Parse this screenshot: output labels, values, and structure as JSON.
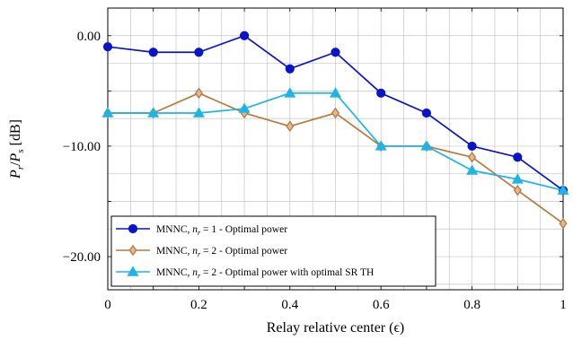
{
  "chart_data": {
    "type": "line",
    "title": "",
    "xlabel": "Relay relative center (ϵ)",
    "ylabel_parts": {
      "main": "P",
      "sub_r": "r",
      "slash": "/",
      "sub_s": "s",
      "unit": " [dB]"
    },
    "xlim": [
      0,
      1
    ],
    "ylim": [
      -23,
      2.5
    ],
    "grid": true,
    "legend_position": "bottom-left",
    "x_ticks": [
      0,
      0.2,
      0.4,
      0.6,
      0.8,
      1
    ],
    "x_tick_labels": [
      "0",
      "0.2",
      "0.4",
      "0.6",
      "0.8",
      "1"
    ],
    "y_ticks": [
      0,
      -10,
      -20
    ],
    "y_tick_labels": [
      "0.00",
      "−10.00",
      "−20.00"
    ],
    "x": [
      0,
      0.1,
      0.2,
      0.3,
      0.4,
      0.5,
      0.6,
      0.7,
      0.8,
      0.9,
      1.0
    ],
    "series": [
      {
        "name": "MNNC, n_r = 1 - Optimal power",
        "legend_prefix": "MNNC, ",
        "legend_var": "n",
        "legend_sub": "r",
        "legend_eq": " = 1",
        "legend_suffix": " - Optimal power",
        "color": "#0a14c8",
        "marker": "circle",
        "values": [
          -1,
          -1.5,
          -1.5,
          0,
          -3,
          -1.5,
          -5.2,
          -7,
          -10,
          -11,
          -14
        ]
      },
      {
        "name": "MNNC, n_r = 2 - Optimal power",
        "legend_prefix": "MNNC, ",
        "legend_var": "n",
        "legend_sub": "r",
        "legend_eq": " = 2",
        "legend_suffix": " - Optimal power",
        "color": "#b8793a",
        "marker": "diamond",
        "values": [
          -7,
          -7,
          -5.2,
          -7,
          -8.2,
          -7,
          -10,
          -10,
          -11,
          -14,
          -17
        ]
      },
      {
        "name": "MNNC, n_r = 2 - Optimal power with optimal SR TH",
        "legend_prefix": "MNNC, ",
        "legend_var": "n",
        "legend_sub": "r",
        "legend_eq": " = 2",
        "legend_suffix": " - Optimal power with optimal SR TH",
        "color": "#1eb4e6",
        "marker": "triangle",
        "values": [
          -7,
          -7,
          -7,
          -6.6,
          -5.2,
          -5.2,
          -10,
          -10,
          -12.2,
          -13,
          -14
        ]
      }
    ]
  }
}
